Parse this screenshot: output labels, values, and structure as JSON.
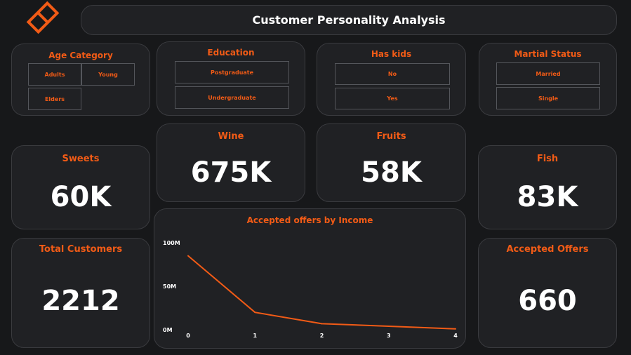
{
  "header": {
    "title": "Customer Personality Analysis",
    "logo": "orange-diamond-logo"
  },
  "slicers": {
    "age": {
      "title": "Age Category",
      "options": [
        "Adults",
        "Young",
        "Elders"
      ]
    },
    "education": {
      "title": "Education",
      "options": [
        "Postgraduate",
        "Undergraduate"
      ]
    },
    "kids": {
      "title": "Has kids",
      "options": [
        "No",
        "Yes"
      ]
    },
    "marital": {
      "title": "Martial Status",
      "options": [
        "Married",
        "Single"
      ]
    }
  },
  "kpis": {
    "sweets": {
      "label": "Sweets",
      "value": "60K"
    },
    "wine": {
      "label": "Wine",
      "value": "675K"
    },
    "fruits": {
      "label": "Fruits",
      "value": "58K"
    },
    "fish": {
      "label": "Fish",
      "value": "83K"
    },
    "total_customers": {
      "label": "Total Customers",
      "value": "2212"
    },
    "accepted_offers": {
      "label": "Accepted Offers",
      "value": "660"
    }
  },
  "colors": {
    "accent": "#f25b16",
    "card": "#202124",
    "background": "#17181a",
    "text": "#ffffff"
  },
  "chart_data": {
    "type": "line",
    "title": "Accepted offers by Income",
    "x": [
      0,
      1,
      2,
      3,
      4
    ],
    "x_tick_labels": [
      "0",
      "1",
      "2",
      "3",
      "4"
    ],
    "y_tick_labels": [
      "100M",
      "50M",
      "0M"
    ],
    "series": [
      {
        "values": [
          85,
          20,
          7,
          4,
          1
        ]
      }
    ],
    "ylim": [
      0,
      100
    ],
    "xlabel": "",
    "ylabel": "",
    "grid": false,
    "color": "#f25b16"
  }
}
